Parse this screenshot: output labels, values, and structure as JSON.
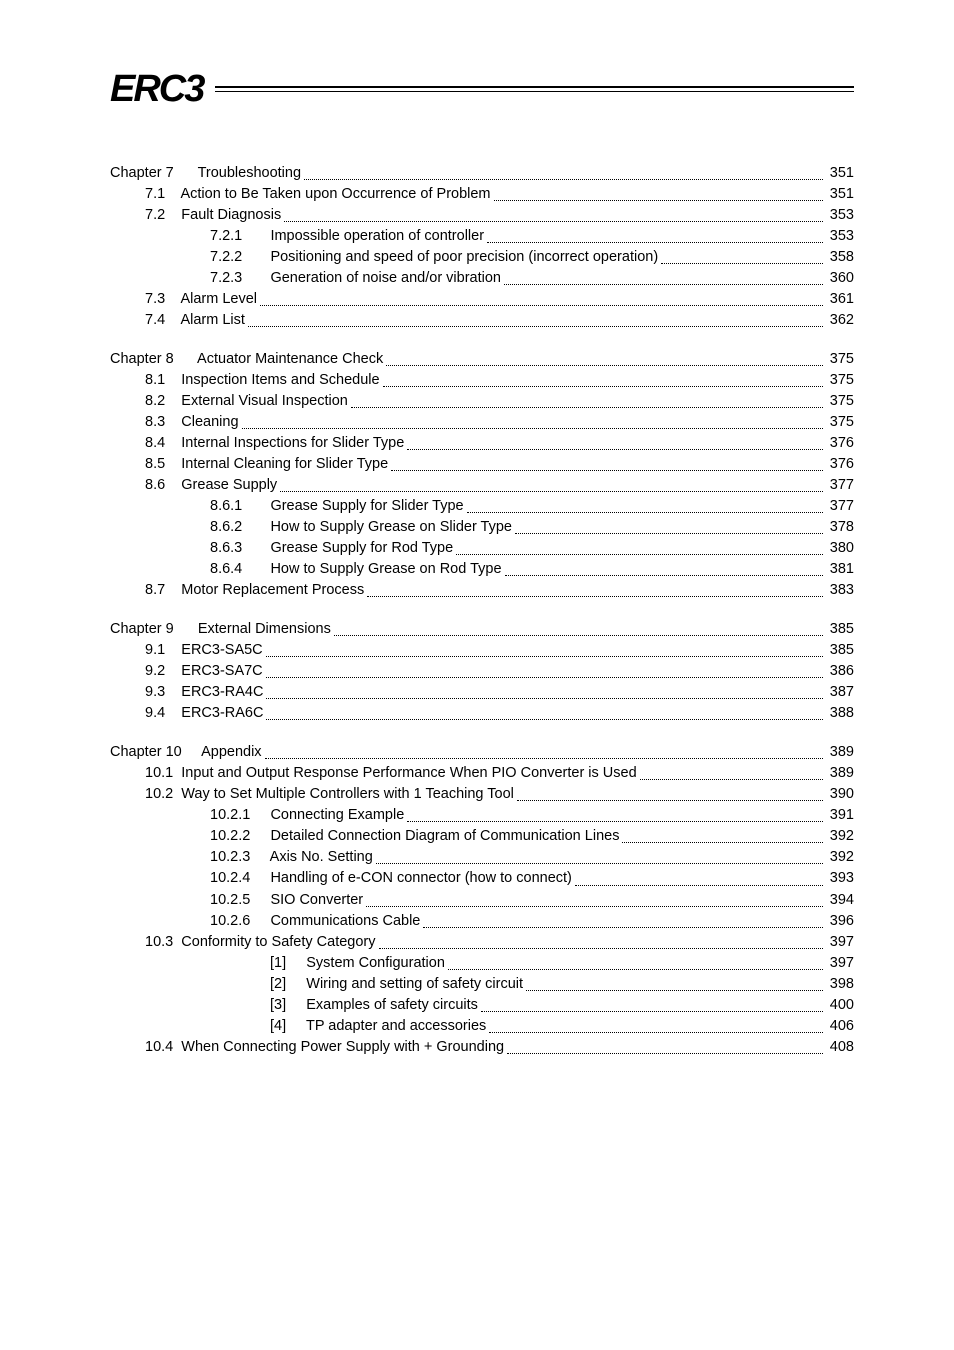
{
  "logo_text": "ERC3",
  "toc": [
    {
      "level": "ch",
      "label": "Chapter 7      Troubleshooting",
      "page": "351"
    },
    {
      "level": "1",
      "label": "7.1    Action to Be Taken upon Occurrence of Problem",
      "page": "351"
    },
    {
      "level": "1",
      "label": "7.2    Fault Diagnosis",
      "page": "353"
    },
    {
      "level": "2",
      "label": "7.2.1       Impossible operation of controller",
      "page": "353"
    },
    {
      "level": "2",
      "label": "7.2.2       Positioning and speed of poor precision (incorrect operation)",
      "page": "358"
    },
    {
      "level": "2",
      "label": "7.2.3       Generation of noise and/or vibration",
      "page": "360"
    },
    {
      "level": "1",
      "label": "7.3    Alarm Level",
      "page": "361"
    },
    {
      "level": "1",
      "label": "7.4    Alarm List",
      "page": "362"
    },
    {
      "gap": true
    },
    {
      "level": "ch",
      "label": "Chapter 8      Actuator Maintenance Check",
      "page": "375"
    },
    {
      "level": "1",
      "label": "8.1    Inspection Items and Schedule",
      "page": "375"
    },
    {
      "level": "1",
      "label": "8.2    External Visual Inspection",
      "page": "375"
    },
    {
      "level": "1",
      "label": "8.3    Cleaning",
      "page": "375"
    },
    {
      "level": "1",
      "label": "8.4    Internal Inspections for Slider Type",
      "page": "376"
    },
    {
      "level": "1",
      "label": "8.5    Internal Cleaning for Slider Type",
      "page": "376"
    },
    {
      "level": "1",
      "label": "8.6    Grease Supply",
      "page": "377"
    },
    {
      "level": "2",
      "label": "8.6.1       Grease Supply for Slider Type",
      "page": "377"
    },
    {
      "level": "2",
      "label": "8.6.2       How to Supply Grease on Slider Type",
      "page": "378"
    },
    {
      "level": "2",
      "label": "8.6.3       Grease Supply for Rod Type",
      "page": "380"
    },
    {
      "level": "2",
      "label": "8.6.4       How to Supply Grease on Rod Type",
      "page": "381"
    },
    {
      "level": "1",
      "label": "8.7    Motor Replacement Process",
      "page": "383"
    },
    {
      "gap": true
    },
    {
      "level": "ch",
      "label": "Chapter 9      External Dimensions",
      "page": "385"
    },
    {
      "level": "1",
      "label": "9.1    ERC3-SA5C",
      "page": "385"
    },
    {
      "level": "1",
      "label": "9.2    ERC3-SA7C",
      "page": "386"
    },
    {
      "level": "1",
      "label": "9.3    ERC3-RA4C",
      "page": "387"
    },
    {
      "level": "1",
      "label": "9.4    ERC3-RA6C",
      "page": "388"
    },
    {
      "gap": true
    },
    {
      "level": "ch",
      "label": "Chapter 10     Appendix",
      "page": "389"
    },
    {
      "level": "1",
      "label": "10.1  Input and Output Response Performance When PIO Converter is Used",
      "page": "389"
    },
    {
      "level": "1",
      "label": "10.2  Way to Set Multiple Controllers with 1 Teaching Tool",
      "page": "390"
    },
    {
      "level": "2",
      "label": "10.2.1     Connecting Example",
      "page": "391"
    },
    {
      "level": "2",
      "label": "10.2.2     Detailed Connection Diagram of Communication Lines",
      "page": "392"
    },
    {
      "level": "2",
      "label": "10.2.3     Axis No. Setting",
      "page": "392"
    },
    {
      "level": "2",
      "label": "10.2.4     Handling of e-CON connector (how to connect)",
      "page": "393"
    },
    {
      "level": "2",
      "label": "10.2.5     SIO Converter",
      "page": "394"
    },
    {
      "level": "2",
      "label": "10.2.6     Communications Cable",
      "page": "396"
    },
    {
      "level": "1",
      "label": "10.3  Conformity to Safety Category",
      "page": "397"
    },
    {
      "level": "3",
      "label": "[1]     System Configuration",
      "page": "397"
    },
    {
      "level": "3",
      "label": "[2]     Wiring and setting of safety circuit",
      "page": "398"
    },
    {
      "level": "3",
      "label": "[3]     Examples of safety circuits",
      "page": "400"
    },
    {
      "level": "3",
      "label": "[4]     TP adapter and accessories",
      "page": "406"
    },
    {
      "level": "1",
      "label": "10.4  When Connecting Power Supply with + Grounding",
      "page": "408"
    }
  ]
}
